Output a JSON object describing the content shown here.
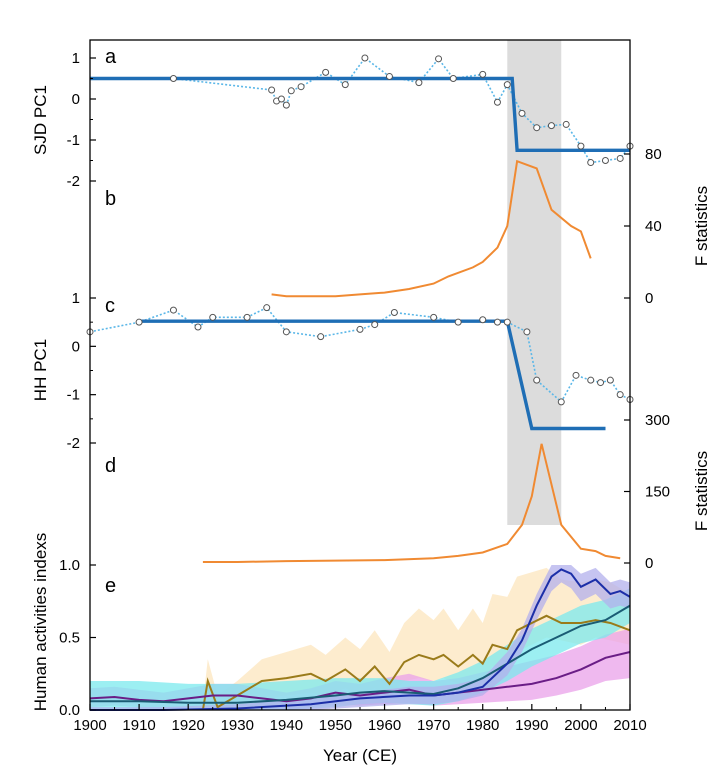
{
  "chart_data": {
    "type": "line",
    "x_axis": {
      "label": "Year (CE)",
      "range": [
        1900,
        2010
      ],
      "ticks": [
        "1900",
        "1910",
        "1920",
        "1930",
        "1940",
        "1950",
        "1960",
        "1970",
        "1980",
        "1990",
        "2000",
        "2010"
      ]
    },
    "highlight_band": {
      "x": [
        1985,
        1996
      ],
      "color": "#dcdcdc"
    },
    "colors": {
      "step": "#1f6eb5",
      "dotted": "#5bb7e8",
      "f_stat": "#f08a32",
      "olive": "#9a7b1a",
      "olive_band": "#fce6bd",
      "navy": "#1c2fa8",
      "navy_band": "#b3b0ec",
      "teal": "#1a5c74",
      "teal_band": "#7be9ee",
      "purple": "#6a1d86",
      "purple_band": "#eaa2ea"
    },
    "panels": [
      {
        "id": "a",
        "label": "a",
        "ylabel": "SJD PC1",
        "y_ticks": [
          "-2",
          "-1",
          "0",
          "1"
        ],
        "ylim": [
          -2.3,
          1.3
        ],
        "series": [
          {
            "style": "dotted-markers",
            "x": [
              1917,
              1937,
              1938,
              1939,
              1940,
              1941,
              1943,
              1948,
              1952,
              1956,
              1961,
              1967,
              1971,
              1974,
              1980,
              1983,
              1985,
              1988,
              1991,
              1994,
              1997,
              2000,
              2002,
              2005,
              2008,
              2010
            ],
            "y": [
              0.5,
              0.22,
              -0.05,
              0.0,
              -0.15,
              0.2,
              0.3,
              0.65,
              0.35,
              1.0,
              0.55,
              0.4,
              0.98,
              0.5,
              0.6,
              -0.08,
              0.35,
              -0.35,
              -0.7,
              -0.65,
              -0.62,
              -1.15,
              -1.55,
              -1.5,
              -1.45,
              -1.15
            ]
          },
          {
            "style": "step-fit",
            "x": [
              1900,
              1986,
              1987,
              2010
            ],
            "y": [
              0.5,
              0.5,
              -1.25,
              -1.25
            ]
          }
        ]
      },
      {
        "id": "b",
        "label": "b",
        "ylabel": "F statistics",
        "y_ticks": [
          "0",
          "40",
          "80"
        ],
        "ylim": [
          0,
          80
        ],
        "series": [
          {
            "style": "line",
            "x": [
              1937,
              1940,
              1945,
              1950,
              1955,
              1960,
              1965,
              1970,
              1973,
              1978,
              1980,
              1983,
              1985,
              1987,
              1991,
              1994,
              1998,
              2000,
              2002
            ],
            "y": [
              2,
              1,
              1,
              1,
              2,
              3,
              5,
              8,
              12,
              17,
              20,
              28,
              40,
              76,
              72,
              49,
              40,
              37,
              22
            ]
          }
        ]
      },
      {
        "id": "c",
        "label": "c",
        "ylabel": "HH PC1",
        "y_ticks": [
          "-2",
          "-1",
          "0",
          "1"
        ],
        "ylim": [
          -2.3,
          1.3
        ],
        "series": [
          {
            "style": "dotted-markers",
            "x": [
              1900,
              1910,
              1917,
              1922,
              1925,
              1932,
              1936,
              1940,
              1947,
              1955,
              1958,
              1962,
              1970,
              1975,
              1980,
              1983,
              1985,
              1989,
              1991,
              1996,
              1999,
              2002,
              2004,
              2006,
              2008,
              2010
            ],
            "y": [
              0.3,
              0.5,
              0.75,
              0.4,
              0.6,
              0.6,
              0.8,
              0.3,
              0.2,
              0.35,
              0.45,
              0.7,
              0.6,
              0.5,
              0.55,
              0.5,
              0.5,
              0.3,
              -0.7,
              -1.15,
              -0.6,
              -0.7,
              -0.75,
              -0.7,
              -1.0,
              -1.1
            ]
          },
          {
            "style": "step-fit",
            "x": [
              1910,
              1985,
              1990,
              2005
            ],
            "y": [
              0.52,
              0.52,
              -1.7,
              -1.7
            ]
          }
        ]
      },
      {
        "id": "d",
        "label": "d",
        "ylabel": "F statistics",
        "y_ticks": [
          "0",
          "150",
          "300"
        ],
        "ylim": [
          0,
          300
        ],
        "series": [
          {
            "style": "line",
            "x": [
              1923,
              1930,
              1940,
              1950,
              1960,
              1970,
              1975,
              1980,
              1985,
              1988,
              1990,
              1992,
              1996,
              2000,
              2003,
              2005,
              2008
            ],
            "y": [
              2,
              2,
              4,
              5,
              6,
              10,
              15,
              22,
              40,
              80,
              140,
              250,
              80,
              30,
              25,
              15,
              10
            ]
          }
        ]
      },
      {
        "id": "e",
        "label": "e",
        "ylabel": "Human activities indexs",
        "y_ticks": [
          "0.0",
          "0.5",
          "1.0"
        ],
        "ylim": [
          0,
          1.0
        ],
        "series": [
          {
            "style": "line-band",
            "color_key": "olive",
            "x": [
              1923,
              1924,
              1926,
              1930,
              1935,
              1940,
              1945,
              1948,
              1952,
              1955,
              1958,
              1961,
              1964,
              1967,
              1970,
              1972,
              1975,
              1978,
              1980,
              1982,
              1985,
              1987,
              1990,
              1993,
              1996,
              2000,
              2003,
              2006,
              2010
            ],
            "y": [
              0.0,
              0.2,
              0.02,
              0.1,
              0.2,
              0.22,
              0.25,
              0.2,
              0.28,
              0.2,
              0.3,
              0.18,
              0.33,
              0.38,
              0.35,
              0.38,
              0.3,
              0.38,
              0.32,
              0.45,
              0.42,
              0.55,
              0.6,
              0.65,
              0.6,
              0.6,
              0.62,
              0.6,
              0.55
            ],
            "lower": [
              0.0,
              0.12,
              0.0,
              0.02,
              0.08,
              0.1,
              0.12,
              0.1,
              0.15,
              0.1,
              0.15,
              0.08,
              0.2,
              0.22,
              0.2,
              0.22,
              0.18,
              0.22,
              0.2,
              0.3,
              0.3,
              0.4,
              0.45,
              0.5,
              0.48,
              0.45,
              0.5,
              0.48,
              0.45
            ],
            "upper": [
              0.05,
              0.35,
              0.1,
              0.2,
              0.35,
              0.4,
              0.45,
              0.38,
              0.5,
              0.42,
              0.55,
              0.4,
              0.6,
              0.7,
              0.62,
              0.7,
              0.55,
              0.7,
              0.6,
              0.8,
              0.78,
              0.92,
              0.95,
              0.98,
              0.9,
              0.88,
              0.9,
              0.88,
              0.8
            ]
          },
          {
            "style": "line-band",
            "color_key": "purple",
            "x": [
              1900,
              1905,
              1910,
              1915,
              1920,
              1925,
              1930,
              1935,
              1940,
              1945,
              1950,
              1955,
              1960,
              1965,
              1970,
              1975,
              1980,
              1985,
              1990,
              1995,
              2000,
              2005,
              2010
            ],
            "y": [
              0.08,
              0.09,
              0.07,
              0.06,
              0.08,
              0.1,
              0.1,
              0.08,
              0.06,
              0.08,
              0.12,
              0.1,
              0.12,
              0.14,
              0.1,
              0.12,
              0.14,
              0.16,
              0.18,
              0.22,
              0.28,
              0.36,
              0.4
            ],
            "lower": [
              0.02,
              0.03,
              0.02,
              0.01,
              0.02,
              0.03,
              0.03,
              0.02,
              0.01,
              0.02,
              0.04,
              0.03,
              0.04,
              0.05,
              0.03,
              0.04,
              0.05,
              0.06,
              0.07,
              0.1,
              0.14,
              0.2,
              0.22
            ],
            "upper": [
              0.15,
              0.16,
              0.14,
              0.12,
              0.15,
              0.18,
              0.18,
              0.15,
              0.12,
              0.15,
              0.2,
              0.18,
              0.22,
              0.25,
              0.2,
              0.22,
              0.26,
              0.3,
              0.34,
              0.38,
              0.44,
              0.52,
              0.56
            ]
          },
          {
            "style": "line-band",
            "color_key": "teal",
            "x": [
              1900,
              1910,
              1920,
              1930,
              1940,
              1950,
              1955,
              1960,
              1965,
              1970,
              1975,
              1980,
              1985,
              1990,
              1995,
              2000,
              2005,
              2010
            ],
            "y": [
              0.06,
              0.06,
              0.05,
              0.05,
              0.07,
              0.1,
              0.12,
              0.13,
              0.12,
              0.11,
              0.15,
              0.22,
              0.32,
              0.42,
              0.5,
              0.58,
              0.62,
              0.72
            ],
            "lower": [
              0.0,
              0.0,
              0.0,
              0.0,
              0.0,
              0.02,
              0.04,
              0.05,
              0.04,
              0.03,
              0.06,
              0.12,
              0.2,
              0.3,
              0.38,
              0.46,
              0.5,
              0.6
            ],
            "upper": [
              0.2,
              0.2,
              0.18,
              0.18,
              0.2,
              0.22,
              0.22,
              0.22,
              0.2,
              0.2,
              0.26,
              0.34,
              0.45,
              0.56,
              0.64,
              0.72,
              0.76,
              0.84
            ]
          },
          {
            "style": "line-band",
            "color_key": "navy",
            "x": [
              1900,
              1915,
              1930,
              1945,
              1955,
              1965,
              1970,
              1975,
              1980,
              1985,
              1988,
              1991,
              1994,
              1996,
              1998,
              2000,
              2003,
              2006,
              2008,
              2010
            ],
            "y": [
              0.0,
              0.0,
              0.01,
              0.04,
              0.08,
              0.1,
              0.1,
              0.12,
              0.16,
              0.32,
              0.48,
              0.72,
              0.92,
              0.97,
              0.94,
              0.85,
              0.9,
              0.8,
              0.82,
              0.78
            ],
            "lower": [
              0.0,
              0.0,
              0.0,
              0.0,
              0.02,
              0.04,
              0.04,
              0.06,
              0.1,
              0.24,
              0.4,
              0.62,
              0.82,
              0.88,
              0.84,
              0.75,
              0.8,
              0.7,
              0.72,
              0.7
            ],
            "upper": [
              0.02,
              0.02,
              0.04,
              0.08,
              0.12,
              0.16,
              0.16,
              0.18,
              0.22,
              0.4,
              0.56,
              0.8,
              1.0,
              1.0,
              1.0,
              0.94,
              0.98,
              0.88,
              0.9,
              0.88
            ]
          }
        ]
      }
    ]
  }
}
